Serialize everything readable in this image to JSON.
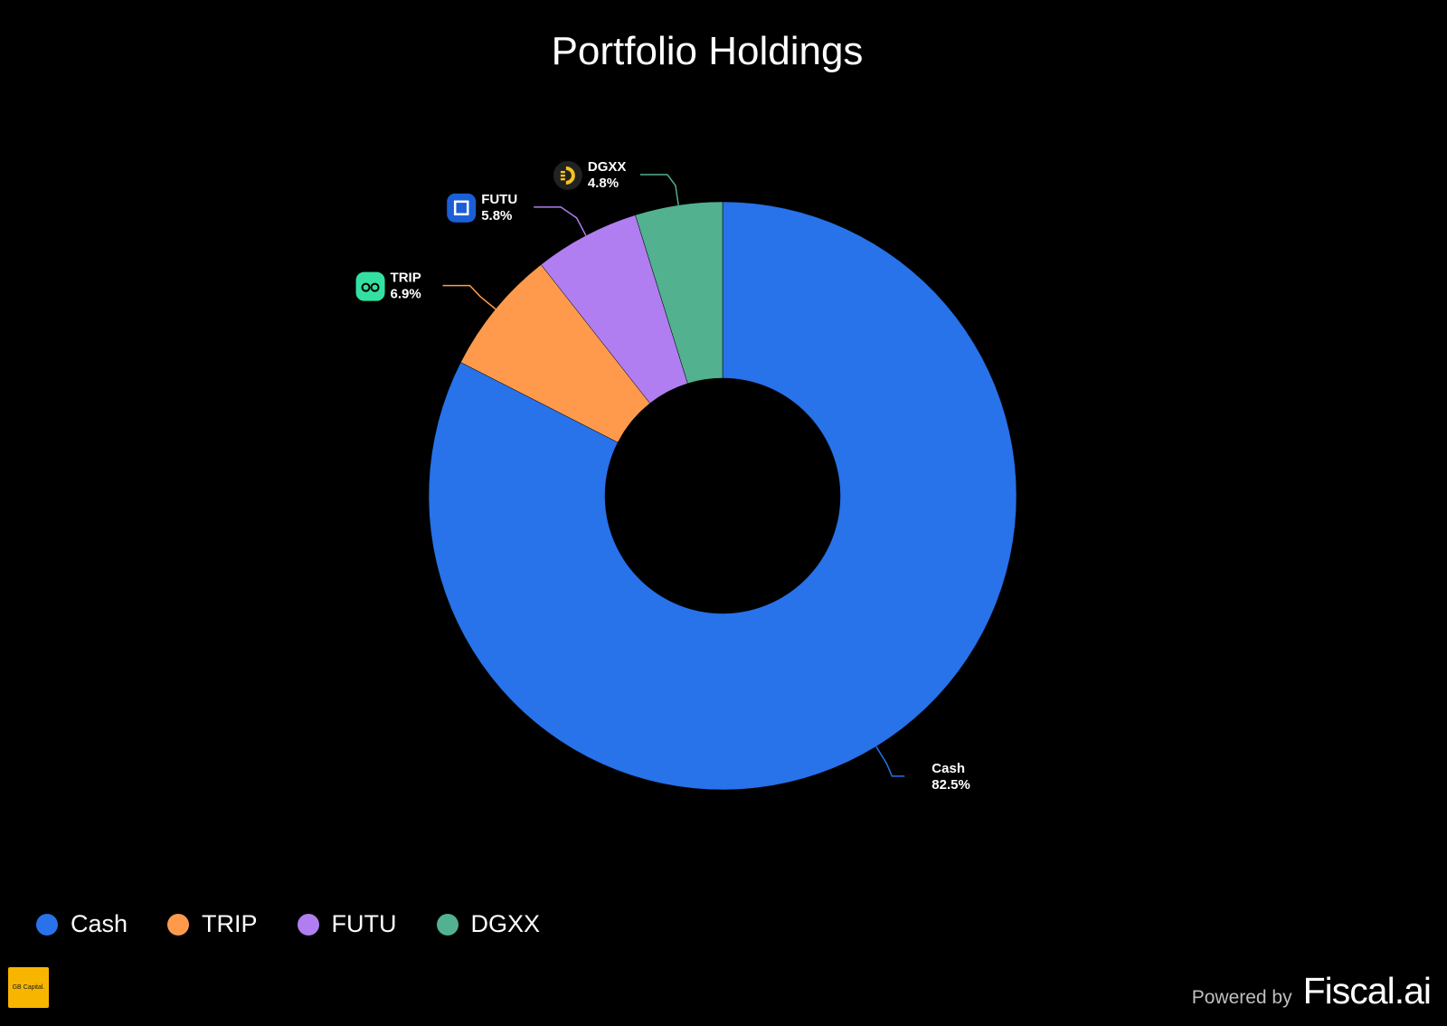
{
  "chart_data": {
    "type": "pie",
    "title": "Portfolio Holdings",
    "donut": true,
    "categories": [
      "Cash",
      "TRIP",
      "FUTU",
      "DGXX"
    ],
    "values": [
      82.5,
      6.9,
      5.8,
      4.8
    ],
    "value_labels": [
      "82.5%",
      "6.9%",
      "5.8%",
      "4.8%"
    ],
    "colors": [
      "#2872ea",
      "#ff9a4d",
      "#b07ef0",
      "#52b18f"
    ],
    "legend_position": "bottom-left"
  },
  "slice_icons": {
    "TRIP": "tripadvisor-owl-icon",
    "FUTU": "futu-logo-icon",
    "DGXX": "dgxx-logo-icon"
  },
  "footer": {
    "badge_text": "GB Capital.",
    "powered_by": "Powered by",
    "brand": "Fiscal.ai"
  }
}
